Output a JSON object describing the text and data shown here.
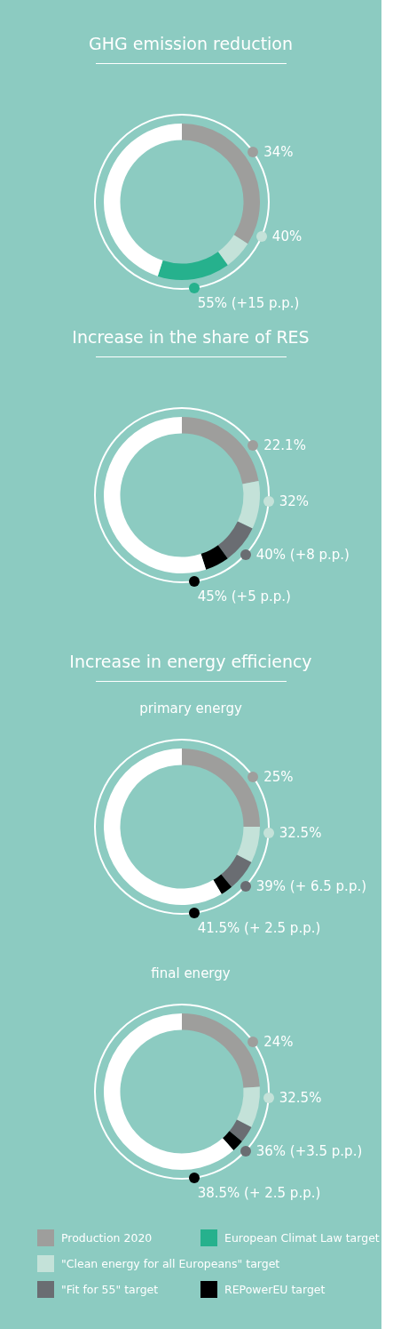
{
  "chart_data": [
    {
      "type": "donut",
      "title": "GHG emission reduction",
      "categories": [
        "Production 2020",
        "\"Clean energy for all Europeans\" target",
        "European Climat Law target",
        null
      ],
      "values": [
        34,
        6,
        15,
        45
      ],
      "colors": [
        "#9e9e9c",
        "#c4e2d9",
        "#26b18d",
        "#ffffff"
      ],
      "annotations": [
        "34%",
        "40%",
        "55% (+15 p.p.)"
      ],
      "legend": "bottom"
    },
    {
      "type": "donut",
      "title": "Increase in the share of RES",
      "categories": [
        null,
        null,
        "\"Fit for 55\" target",
        "REPowerEU target",
        null
      ],
      "values": [
        22.1,
        9.9,
        8,
        5,
        55
      ],
      "colors": [
        "#9e9e9c",
        "#c4e2d9",
        "#6a6d72",
        "#000000",
        "#ffffff"
      ],
      "annotations": [
        "22.1%",
        "32%",
        "40% (+8 p.p.)",
        "45% (+5 p.p.)"
      ],
      "legend": "bottom"
    },
    {
      "type": "donut",
      "title": "Increase in energy efficiency",
      "subtitle": "primary energy",
      "categories": [
        null,
        null,
        null,
        null,
        null
      ],
      "values": [
        25,
        7.5,
        6.5,
        2.5,
        58.5
      ],
      "colors": [
        "#9e9e9c",
        "#c4e2d9",
        "#6a6d72",
        "#000000",
        "#ffffff"
      ],
      "annotations": [
        "25%",
        "32.5%",
        "39% (+ 6.5 p.p.)",
        "41.5% (+ 2.5 p.p.)"
      ]
    },
    {
      "type": "donut",
      "subtitle": "final energy",
      "categories": [
        null,
        null,
        null,
        null,
        null
      ],
      "values": [
        24,
        8.5,
        3.5,
        2.5,
        61.5
      ],
      "colors": [
        "#9e9e9c",
        "#c4e2d9",
        "#6a6d72",
        "#000000",
        "#ffffff"
      ],
      "annotations": [
        "24%",
        "32.5%",
        "36% (+3.5 p.p.)",
        "38.5% (+ 2.5 p.p.)"
      ]
    }
  ]
}
